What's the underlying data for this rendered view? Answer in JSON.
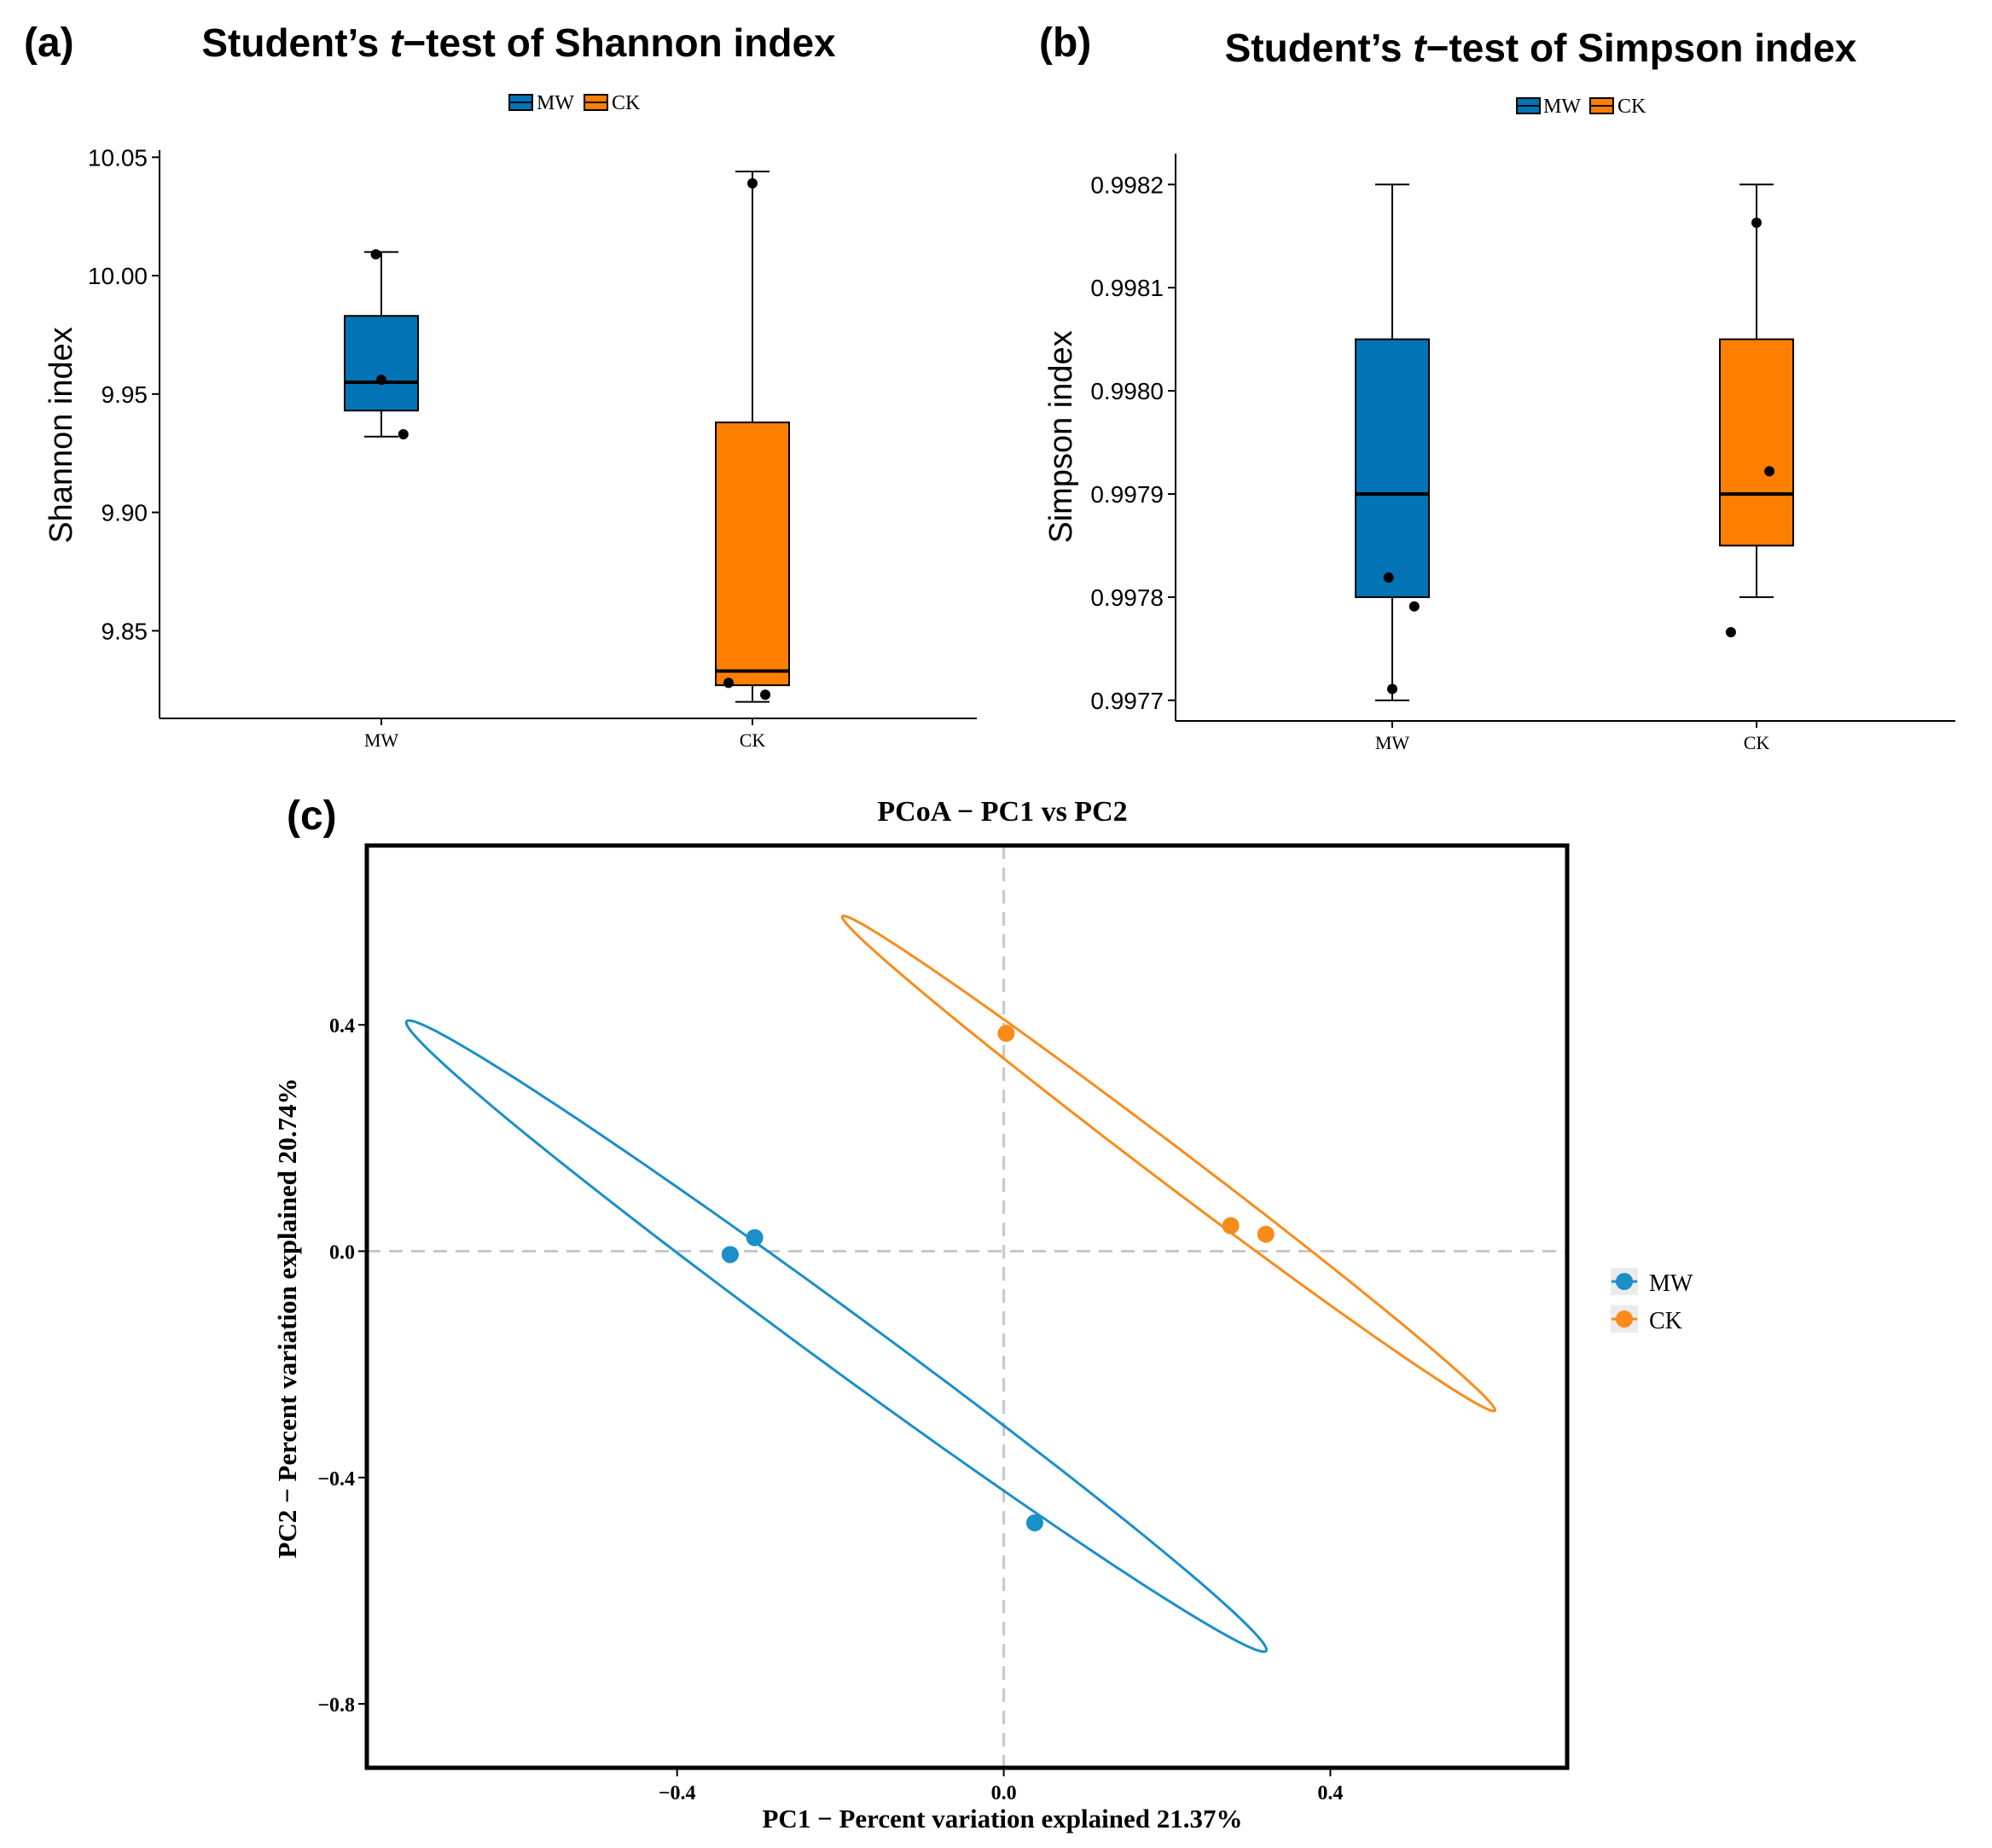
{
  "colors": {
    "mw": "#0273b4",
    "ck": "#fe7f00",
    "mw_line": "#1a8fc8",
    "ck_line": "#f98b1a",
    "axis": "#000000",
    "grid_dash": "#c8c8c8"
  },
  "chart_data": [
    {
      "id": "a",
      "type": "box",
      "panel_label": "(a)",
      "title_pre": "Student’s ",
      "title_em": "t",
      "title_post": "−test of Shannon index",
      "legend": [
        "MW",
        "CK"
      ],
      "ylabel": "Shannon index",
      "xlabel": "",
      "categories": [
        "MW",
        "CK"
      ],
      "ylim": [
        9.813,
        10.053
      ],
      "yticks": [
        9.85,
        9.9,
        9.95,
        10.0,
        10.05
      ],
      "ytick_labels": [
        "9.85",
        "9.90",
        "9.95",
        "10.00",
        "10.05"
      ],
      "boxes": [
        {
          "name": "MW",
          "whisker_low": 9.932,
          "q1": 9.943,
          "median": 9.955,
          "q3": 9.983,
          "whisker_high": 10.01
        },
        {
          "name": "CK",
          "whisker_low": 9.82,
          "q1": 9.827,
          "median": 9.833,
          "q3": 9.938,
          "whisker_high": 10.044
        }
      ],
      "points": [
        {
          "group": "MW",
          "x_offset": 0.0,
          "y": 9.956
        },
        {
          "group": "MW",
          "x_offset": -0.03,
          "y": 10.009
        },
        {
          "group": "MW",
          "x_offset": 0.12,
          "y": 9.933
        },
        {
          "group": "CK",
          "x_offset": 0.0,
          "y": 10.039
        },
        {
          "group": "CK",
          "x_offset": -0.13,
          "y": 9.828
        },
        {
          "group": "CK",
          "x_offset": 0.07,
          "y": 9.823
        }
      ]
    },
    {
      "id": "b",
      "type": "box",
      "panel_label": "(b)",
      "title_pre": "Student’s ",
      "title_em": "t",
      "title_post": "−test of Simpson index",
      "legend": [
        "MW",
        "CK"
      ],
      "ylabel": "Simpson index",
      "xlabel": "",
      "categories": [
        "MW",
        "CK"
      ],
      "ylim": [
        0.99768,
        0.99823
      ],
      "yticks": [
        0.9977,
        0.9978,
        0.9979,
        0.998,
        0.9981,
        0.9982
      ],
      "ytick_labels": [
        "0.9977",
        "0.9978",
        "0.9979",
        "0.9980",
        "0.9981",
        "0.9982"
      ],
      "boxes": [
        {
          "name": "MW",
          "whisker_low": 0.9977,
          "q1": 0.9978,
          "median": 0.9979,
          "q3": 0.99805,
          "whisker_high": 0.9982
        },
        {
          "name": "CK",
          "whisker_low": 0.9978,
          "q1": 0.99785,
          "median": 0.9979,
          "q3": 0.99805,
          "whisker_high": 0.9982
        }
      ],
      "points": [
        {
          "group": "MW",
          "x_offset": -0.02,
          "y": 0.997819
        },
        {
          "group": "MW",
          "x_offset": 0.12,
          "y": 0.997791
        },
        {
          "group": "MW",
          "x_offset": 0.0,
          "y": 0.997711
        },
        {
          "group": "CK",
          "x_offset": 0.0,
          "y": 0.998163
        },
        {
          "group": "CK",
          "x_offset": 0.07,
          "y": 0.997922
        },
        {
          "group": "CK",
          "x_offset": -0.14,
          "y": 0.997766
        }
      ]
    },
    {
      "id": "c",
      "type": "scatter",
      "panel_label": "(c)",
      "title": "PCoA − PC1 vs PC2",
      "xlabel": "PC1 − Percent variation explained 21.37%",
      "ylabel": "PC2 − Percent variation explained 20.74%",
      "xlim": [
        -0.78,
        0.69
      ],
      "ylim": [
        -0.913,
        0.717
      ],
      "xticks": [
        -0.4,
        0.0,
        0.4
      ],
      "xtick_labels": [
        "−0.4",
        "0.0",
        "0.4"
      ],
      "yticks": [
        -0.8,
        -0.4,
        0.0,
        0.4
      ],
      "ytick_labels": [
        "−0.8",
        "−0.4",
        "0.0",
        "0.4"
      ],
      "reference_lines": {
        "x": 0.0,
        "y": 0.0
      },
      "legend": [
        "MW",
        "CK"
      ],
      "series": [
        {
          "name": "MW",
          "points": [
            [
              -0.335,
              -0.006
            ],
            [
              -0.305,
              0.024
            ],
            [
              0.038,
              -0.48
            ]
          ],
          "ellipse": {
            "cx": -0.205,
            "cy": -0.15,
            "rx": 0.766,
            "ry": 0.043,
            "angle_deg": -46.65
          }
        },
        {
          "name": "CK",
          "points": [
            [
              0.003,
              0.385
            ],
            [
              0.278,
              0.045
            ],
            [
              0.321,
              0.03
            ]
          ],
          "ellipse": {
            "cx": 0.202,
            "cy": 0.155,
            "rx": 0.592,
            "ry": 0.027,
            "angle_deg": -47.6
          }
        }
      ]
    }
  ]
}
